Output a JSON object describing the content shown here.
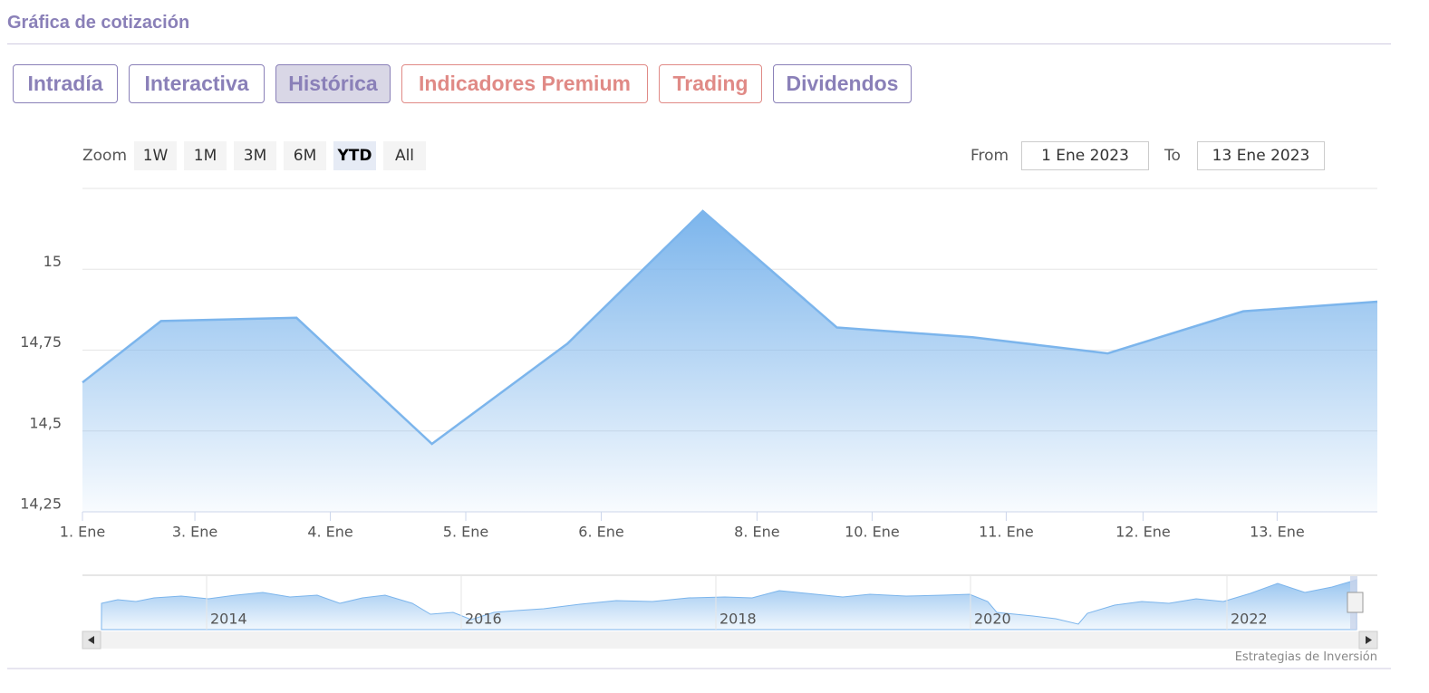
{
  "header": {
    "title": "Gráfica de cotización"
  },
  "tabs": [
    "Intradía",
    "Interactiva",
    "Histórica",
    "Indicadores Premium",
    "Trading",
    "Dividendos"
  ],
  "zoom": {
    "label": "Zoom",
    "buttons": [
      "1W",
      "1M",
      "3M",
      "6M",
      "YTD",
      "All"
    ]
  },
  "range": {
    "from_label": "From",
    "from": "1 Ene 2023",
    "to_label": "To",
    "to": "13 Ene 2023"
  },
  "chart_data": {
    "type": "area",
    "color": "#7cb5ec",
    "x": [
      0,
      0.58,
      1.58,
      2.58,
      3.58,
      4.58,
      5.57,
      6.57,
      7.57,
      8.57,
      9.56
    ],
    "values": [
      14.65,
      14.84,
      14.85,
      14.46,
      14.77,
      15.18,
      14.82,
      14.79,
      14.74,
      14.87,
      14.9
    ],
    "xlim": [
      0,
      9.56
    ],
    "xticks": [
      {
        "value": 0,
        "label": "1. Ene"
      },
      {
        "value": 0.83,
        "label": "3. Ene"
      },
      {
        "value": 1.83,
        "label": "4. Ene"
      },
      {
        "value": 2.83,
        "label": "5. Ene"
      },
      {
        "value": 3.83,
        "label": "6. Ene"
      },
      {
        "value": 4.98,
        "label": "8. Ene"
      },
      {
        "value": 5.83,
        "label": "10. Ene"
      },
      {
        "value": 6.82,
        "label": "11. Ene"
      },
      {
        "value": 7.83,
        "label": "12. Ene"
      },
      {
        "value": 8.82,
        "label": "13. Ene"
      }
    ],
    "ylim": [
      14.25,
      15.25
    ],
    "yticks": [
      {
        "value": 14.25,
        "label": "14,25"
      },
      {
        "value": 14.5,
        "label": "14,5"
      },
      {
        "value": 14.75,
        "label": "14,75"
      },
      15
    ],
    "grid": true
  },
  "navigator": {
    "labels": [
      "2014",
      "2016",
      "2018",
      "2020",
      "2022"
    ]
  },
  "credit": "Estrategias de Inversión"
}
